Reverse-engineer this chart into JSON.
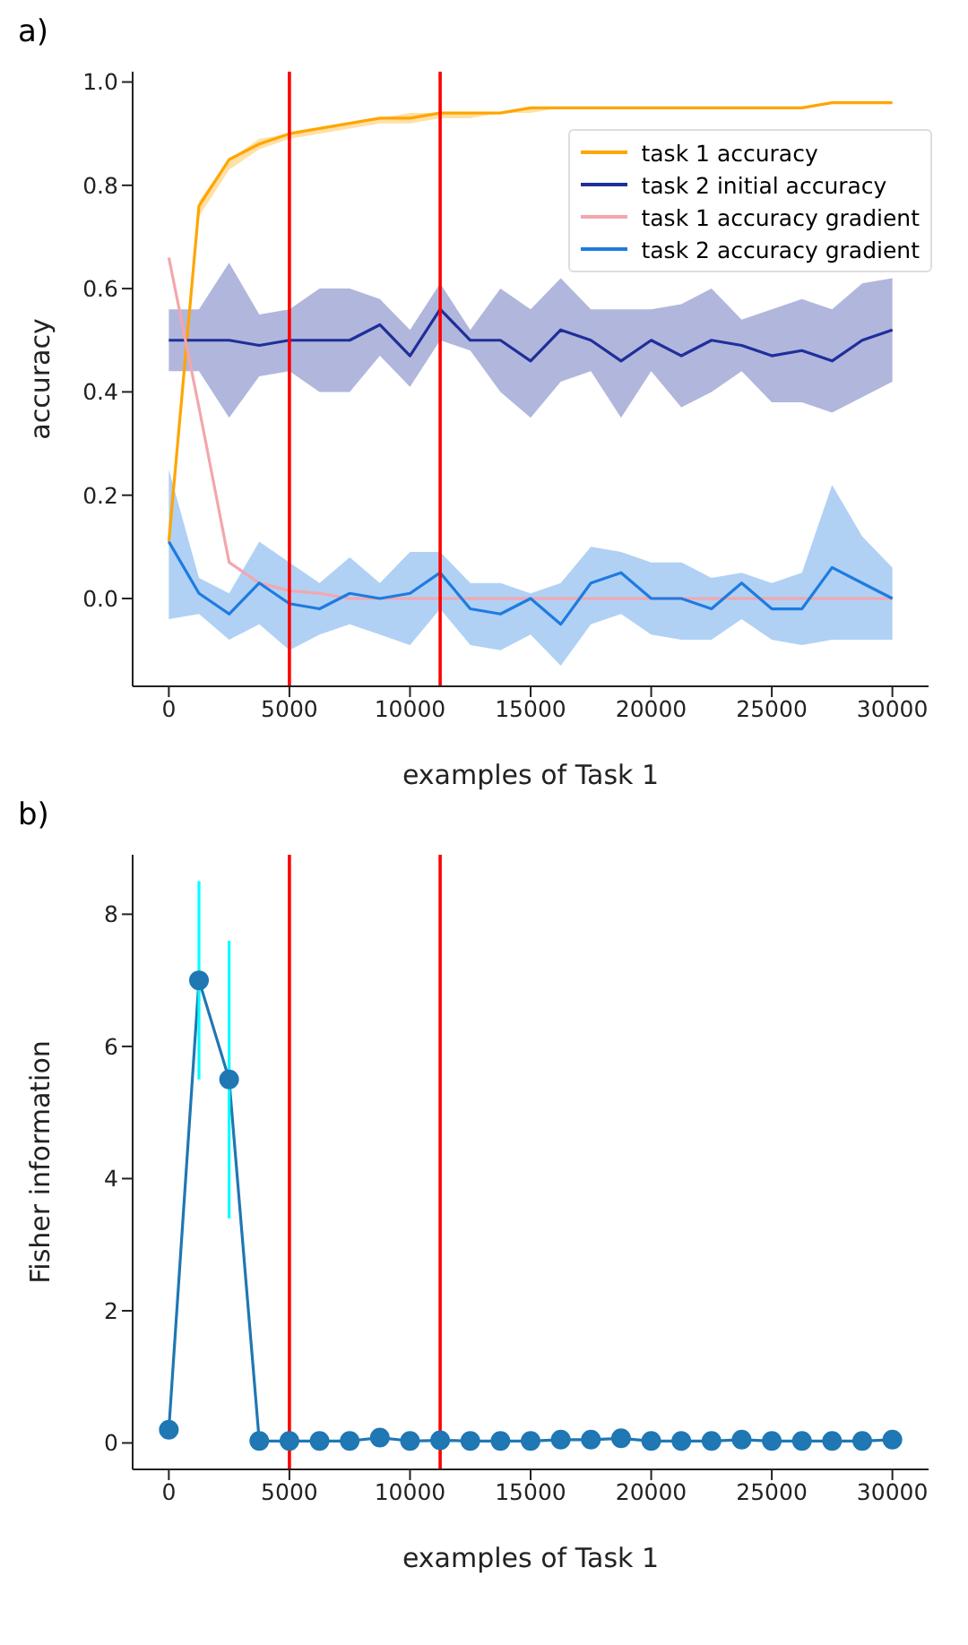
{
  "chart_data": [
    {
      "type": "line",
      "title": "a)",
      "xlabel": "examples of Task 1",
      "ylabel": "accuracy",
      "x": [
        0,
        1250,
        2500,
        3750,
        5000,
        6250,
        7500,
        8750,
        10000,
        11250,
        12500,
        13750,
        15000,
        16250,
        17500,
        18750,
        20000,
        21250,
        22500,
        23750,
        25000,
        26250,
        27500,
        28750,
        30000
      ],
      "series": [
        {
          "name": "task 1 accuracy",
          "color": "#ffa500",
          "values": [
            0.11,
            0.76,
            0.85,
            0.88,
            0.9,
            0.91,
            0.92,
            0.93,
            0.93,
            0.94,
            0.94,
            0.94,
            0.95,
            0.95,
            0.95,
            0.95,
            0.95,
            0.95,
            0.95,
            0.95,
            0.95,
            0.95,
            0.96,
            0.96,
            0.96
          ],
          "lower": [
            0.1,
            0.74,
            0.83,
            0.87,
            0.89,
            0.9,
            0.91,
            0.92,
            0.92,
            0.93,
            0.93,
            0.94,
            0.94,
            0.95,
            0.95,
            0.95,
            0.95,
            0.95,
            0.95,
            0.95,
            0.95,
            0.95,
            0.96,
            0.96,
            0.96
          ],
          "upper": [
            0.12,
            0.77,
            0.85,
            0.89,
            0.9,
            0.91,
            0.92,
            0.93,
            0.94,
            0.94,
            0.94,
            0.94,
            0.95,
            0.95,
            0.95,
            0.95,
            0.95,
            0.95,
            0.95,
            0.95,
            0.95,
            0.95,
            0.96,
            0.96,
            0.96
          ]
        },
        {
          "name": "task 2 initial accuracy",
          "color": "#1f2f9a",
          "values": [
            0.5,
            0.5,
            0.5,
            0.49,
            0.5,
            0.5,
            0.5,
            0.53,
            0.47,
            0.56,
            0.5,
            0.5,
            0.46,
            0.52,
            0.5,
            0.46,
            0.5,
            0.47,
            0.5,
            0.49,
            0.47,
            0.48,
            0.46,
            0.5,
            0.52
          ],
          "lower": [
            0.44,
            0.44,
            0.35,
            0.43,
            0.44,
            0.4,
            0.4,
            0.47,
            0.41,
            0.5,
            0.48,
            0.4,
            0.35,
            0.42,
            0.44,
            0.35,
            0.44,
            0.37,
            0.4,
            0.44,
            0.38,
            0.38,
            0.36,
            0.39,
            0.42
          ],
          "upper": [
            0.56,
            0.56,
            0.65,
            0.55,
            0.56,
            0.6,
            0.6,
            0.58,
            0.52,
            0.61,
            0.52,
            0.6,
            0.56,
            0.62,
            0.56,
            0.56,
            0.56,
            0.57,
            0.6,
            0.54,
            0.56,
            0.58,
            0.56,
            0.61,
            0.62
          ]
        },
        {
          "name": "task 1 accuracy gradient",
          "color": "#f4a6ad",
          "values": [
            0.66,
            0.37,
            0.07,
            0.03,
            0.015,
            0.01,
            0.0,
            0.0,
            0.0,
            0.0,
            0.0,
            0.0,
            0.0,
            0.0,
            0.0,
            0.0,
            0.0,
            0.0,
            0.0,
            0.0,
            0.0,
            0.0,
            0.0,
            0.0,
            0.0
          ]
        },
        {
          "name": "task 2 accuracy gradient",
          "color": "#1e7be0",
          "values": [
            0.11,
            0.01,
            -0.03,
            0.03,
            -0.01,
            -0.02,
            0.01,
            0.0,
            0.01,
            0.05,
            -0.02,
            -0.03,
            0.0,
            -0.05,
            0.03,
            0.05,
            0.0,
            0.0,
            -0.02,
            0.03,
            -0.02,
            -0.02,
            0.06,
            0.03,
            0.0
          ],
          "lower": [
            -0.04,
            -0.03,
            -0.08,
            -0.05,
            -0.1,
            -0.07,
            -0.05,
            -0.07,
            -0.09,
            -0.02,
            -0.09,
            -0.1,
            -0.07,
            -0.13,
            -0.05,
            -0.03,
            -0.07,
            -0.08,
            -0.08,
            -0.04,
            -0.08,
            -0.09,
            -0.08,
            -0.08,
            -0.08
          ],
          "upper": [
            0.25,
            0.04,
            0.01,
            0.11,
            0.07,
            0.03,
            0.08,
            0.03,
            0.09,
            0.09,
            0.03,
            0.03,
            0.01,
            0.03,
            0.1,
            0.09,
            0.07,
            0.07,
            0.04,
            0.05,
            0.03,
            0.05,
            0.22,
            0.12,
            0.06
          ]
        }
      ],
      "xlim": [
        -1500,
        31500
      ],
      "xticks": [
        0,
        5000,
        10000,
        15000,
        20000,
        25000,
        30000
      ],
      "ylim": [
        -0.17,
        1.02
      ],
      "yticks": [
        {
          "value": 0,
          "label": "0.0"
        },
        {
          "value": 0.2,
          "label": "0.2"
        },
        {
          "value": 0.4,
          "label": "0.4"
        },
        {
          "value": 0.6,
          "label": "0.6"
        },
        {
          "value": 0.8,
          "label": "0.8"
        },
        {
          "value": 1,
          "label": "1.0"
        }
      ],
      "ref_lines": [
        {
          "axis": "x",
          "value": 5000,
          "color": "#ff0000"
        },
        {
          "axis": "x",
          "value": 11250,
          "color": "#ff0000"
        }
      ],
      "legend": "top right",
      "marker": "none"
    },
    {
      "type": "line",
      "title": "b)",
      "xlabel": "examples of Task 1",
      "ylabel": "Fisher information",
      "x": [
        0,
        1250,
        2500,
        3750,
        5000,
        6250,
        7500,
        8750,
        10000,
        11250,
        12500,
        13750,
        15000,
        16250,
        17500,
        18750,
        20000,
        21250,
        22500,
        23750,
        25000,
        26250,
        27500,
        28750,
        30000
      ],
      "series": [
        {
          "color": "#1f77b4",
          "values": [
            0.2,
            7.0,
            5.5,
            0.03,
            0.03,
            0.03,
            0.03,
            0.08,
            0.03,
            0.04,
            0.03,
            0.03,
            0.03,
            0.05,
            0.05,
            0.07,
            0.03,
            0.03,
            0.03,
            0.05,
            0.03,
            0.03,
            0.03,
            0.03,
            0.05
          ],
          "errors": [
            null,
            [
              5.5,
              8.5
            ],
            [
              3.4,
              7.6
            ],
            null,
            null,
            null,
            null,
            null,
            null,
            null,
            null,
            null,
            null,
            null,
            null,
            null,
            null,
            null,
            null,
            null,
            null,
            null,
            null,
            null,
            null
          ]
        }
      ],
      "xlim": [
        -1500,
        31500
      ],
      "xticks": [
        0,
        5000,
        10000,
        15000,
        20000,
        25000,
        30000
      ],
      "ylim": [
        -0.4,
        8.9
      ],
      "yticks": [
        0,
        2,
        4,
        6,
        8
      ],
      "ref_lines": [
        {
          "axis": "x",
          "value": 5000,
          "color": "#ff0000"
        },
        {
          "axis": "x",
          "value": 11250,
          "color": "#ff0000"
        }
      ],
      "marker": "circle"
    }
  ]
}
